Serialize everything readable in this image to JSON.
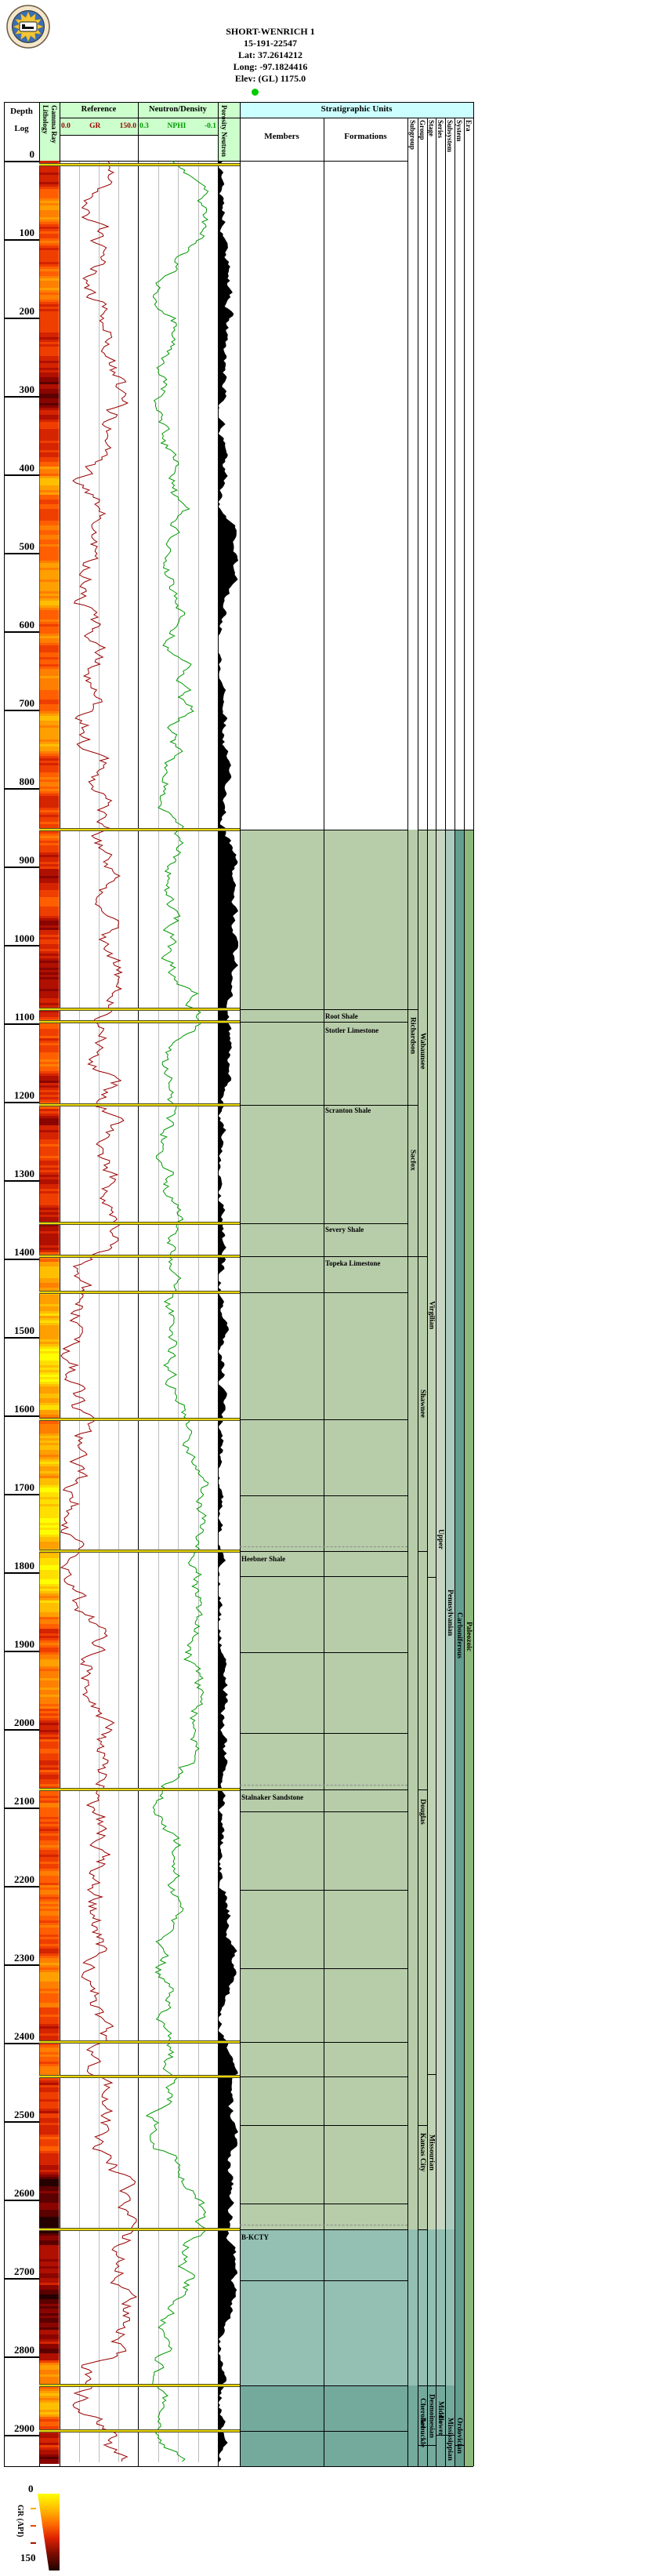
{
  "header": {
    "well_name": "SHORT-WENRICH 1",
    "api_number": "15-191-22547",
    "latitude": "Lat: 37.2614212",
    "longitude": "Long: -97.1824416",
    "elevation": "Elev: (GL) 1175.0",
    "logo": "Kansas Geological Survey seal"
  },
  "tracks": {
    "depth": {
      "title_line1": "Depth",
      "title_line2": "Log"
    },
    "lithology": {
      "title": "Lithology Gamma Ray"
    },
    "reference": {
      "title": "Reference",
      "curve_label": "GR",
      "scale_min": "0.0",
      "scale_max": "150.0"
    },
    "neutron_density": {
      "title": "Neutron/Density",
      "curve_label": "NPHI",
      "scale_min": "0.3",
      "scale_max": "-0.1"
    },
    "porosity": {
      "title": "Porosity Neutron"
    }
  },
  "strat_header": {
    "title": "Stratigraphic Units",
    "members_label": "Members",
    "formations_label": "Formations",
    "rank_columns": [
      "Subgroup",
      "Group",
      "Stage",
      "Series",
      "Subsystem",
      "System",
      "Era"
    ]
  },
  "legend": {
    "min_label": "0",
    "max_label": "150",
    "axis_label": "GR (API)"
  },
  "colors": {
    "header_green": "#ccffcc",
    "header_cyan": "#ccffff",
    "gr_curve": "#990000",
    "nphi_curve": "#009900",
    "porosity_fill": "#000000",
    "sage": "#b7cdaa",
    "sage_pale": "#c1d3b5",
    "series_pale": "#c6d6c2",
    "teal_pale": "#aacbbd",
    "teal": "#639e8e",
    "green_era": "#8cb97c",
    "teal_mid": "#93c0b3",
    "teal_dark": "#74aa9c",
    "marker_yellow": "#e9d400",
    "dot_green": "#00cd00"
  },
  "chart_data": {
    "type": "well-log",
    "title": "SHORT-WENRICH 1",
    "depth_axis": {
      "unit": "ft",
      "min": 0,
      "max": 2935,
      "major_tick": 100,
      "minor_tick": 50
    },
    "curves": [
      {
        "name": "GR",
        "track": "Reference",
        "scale": [
          0.0,
          150.0
        ],
        "units": "API",
        "color": "#990000",
        "style": "line",
        "synthetic_seed": 42
      },
      {
        "name": "NPHI",
        "track": "Neutron/Density",
        "scale": [
          0.3,
          -0.1
        ],
        "color": "#009900",
        "style": "line",
        "synthetic_seed": 7
      },
      {
        "name": "Porosity Neutron",
        "track": "Porosity Neutron",
        "style": "filled-silhouette",
        "color": "#000000",
        "synthetic_seed": 13
      },
      {
        "name": "Lithology Gamma Ray strip",
        "track": "Lithology Gamma Ray",
        "style": "color-strip",
        "palette": [
          "#ffff00",
          "#ffdf00",
          "#ffbf00",
          "#ff9f00",
          "#ff7f00",
          "#ff5f00",
          "#ef3f00",
          "#d42400",
          "#b01000",
          "#8a0500",
          "#5c0000",
          "#260000"
        ]
      }
    ],
    "shading_start_ft": 853,
    "shade_bands": [
      {
        "cols": "members_to_group",
        "segments": [
          [
            853,
            2638,
            "sage"
          ],
          [
            2638,
            2837,
            "teal_mid"
          ],
          [
            2837,
            2940,
            "teal_dark"
          ]
        ]
      },
      {
        "cols": "stage",
        "segments": [
          [
            853,
            2638,
            "sage_pale"
          ],
          [
            2638,
            2837,
            "teal_mid"
          ],
          [
            2837,
            2940,
            "teal_dark"
          ]
        ]
      },
      {
        "cols": "series",
        "segments": [
          [
            853,
            2638,
            "series_pale"
          ],
          [
            2638,
            2837,
            "teal_mid"
          ],
          [
            2837,
            2940,
            "teal_dark"
          ]
        ]
      },
      {
        "cols": "subsystem",
        "segments": [
          [
            853,
            2638,
            "teal_pale"
          ],
          [
            2638,
            2837,
            "teal_mid"
          ],
          [
            2837,
            2940,
            "teal_dark"
          ]
        ]
      },
      {
        "cols": "system",
        "segments": [
          [
            853,
            2940,
            "teal"
          ]
        ]
      },
      {
        "cols": "era",
        "segments": [
          [
            853,
            2940,
            "green_era"
          ]
        ]
      }
    ],
    "formation_labels": [
      {
        "label": "Root Shale",
        "depth_ft": 1090
      },
      {
        "label": "Stotler Limestone",
        "depth_ft": 1108
      },
      {
        "label": "Scranton Shale",
        "depth_ft": 1210
      },
      {
        "label": "Severy Shale",
        "depth_ft": 1362
      },
      {
        "label": "Topeka Limestone",
        "depth_ft": 1405
      }
    ],
    "member_labels": [
      {
        "label": "Heebner Shale",
        "depth_ft": 1782
      },
      {
        "label": "Stalnaker Sandstone",
        "depth_ft": 2086
      },
      {
        "label": "B-KCTY",
        "depth_ft": 2647
      }
    ],
    "rank_labels": [
      {
        "column": "subgroup",
        "label": "Richardson",
        "depth_ft": 1115
      },
      {
        "column": "subgroup",
        "label": "Sacfox",
        "depth_ft": 1274
      },
      {
        "column": "group",
        "label": "Wabaunsee",
        "depth_ft": 1135
      },
      {
        "column": "group",
        "label": "Shawnee",
        "depth_ft": 1585
      },
      {
        "column": "group",
        "label": "Douglas",
        "depth_ft": 2105
      },
      {
        "column": "group",
        "label": "Kansas City",
        "depth_ft": 2540
      },
      {
        "column": "group",
        "label": "Cherokee",
        "depth_ft": 2872
      },
      {
        "column": "group",
        "label": "Arbuckle",
        "depth_ft": 2928
      },
      {
        "column": "stage",
        "label": "Virgilian",
        "depth_ft": 1472
      },
      {
        "column": "stage",
        "label": "Missourian",
        "depth_ft": 2540
      },
      {
        "column": "stage",
        "label": "Desmoinesian",
        "depth_ft": 2876
      },
      {
        "column": "series",
        "label": "Upper",
        "depth_ft": 1758
      },
      {
        "column": "series",
        "label": "Middle",
        "depth_ft": 2872
      },
      {
        "column": "series",
        "label": "Lower",
        "depth_ft": 2925
      },
      {
        "column": "subsystem",
        "label": "Pennsylvanian",
        "depth_ft": 1852
      },
      {
        "column": "subsystem",
        "label": "Mississippian",
        "depth_ft": 2928
      },
      {
        "column": "system",
        "label": "Carboniferous",
        "depth_ft": 1880
      },
      {
        "column": "system",
        "label": "Ordovician",
        "depth_ft": 2928
      },
      {
        "column": "era",
        "label": "Paleozoic",
        "depth_ft": 1882
      }
    ],
    "boundaries_ft": {
      "members_formations": [
        853,
        1082,
        1098,
        1204,
        1355,
        1397,
        1443,
        1605,
        1702,
        1773,
        1805,
        1902,
        2005,
        2077,
        2105,
        2205,
        2305,
        2399,
        2443,
        2505,
        2605,
        2638,
        2703,
        2837,
        2895
      ],
      "subgroup": [
        1082,
        1204,
        1397
      ],
      "group": [
        853,
        1397,
        1773,
        2077,
        2505,
        2638,
        2837,
        2913
      ],
      "stage": [
        853,
        1806,
        2440,
        2837,
        2913
      ],
      "series": [
        853,
        2837,
        2900
      ],
      "subsystem": [
        853,
        2900
      ],
      "system": [
        853,
        2913
      ],
      "era": [
        853
      ]
    },
    "markers_ft": [
      5,
      853,
      1082,
      1098,
      1204,
      1355,
      1397,
      1443,
      1605,
      1773,
      2077,
      2399,
      2443,
      2638,
      2837,
      2895
    ],
    "member_top_dashes_ft": [
      1773,
      2077,
      2638
    ]
  }
}
